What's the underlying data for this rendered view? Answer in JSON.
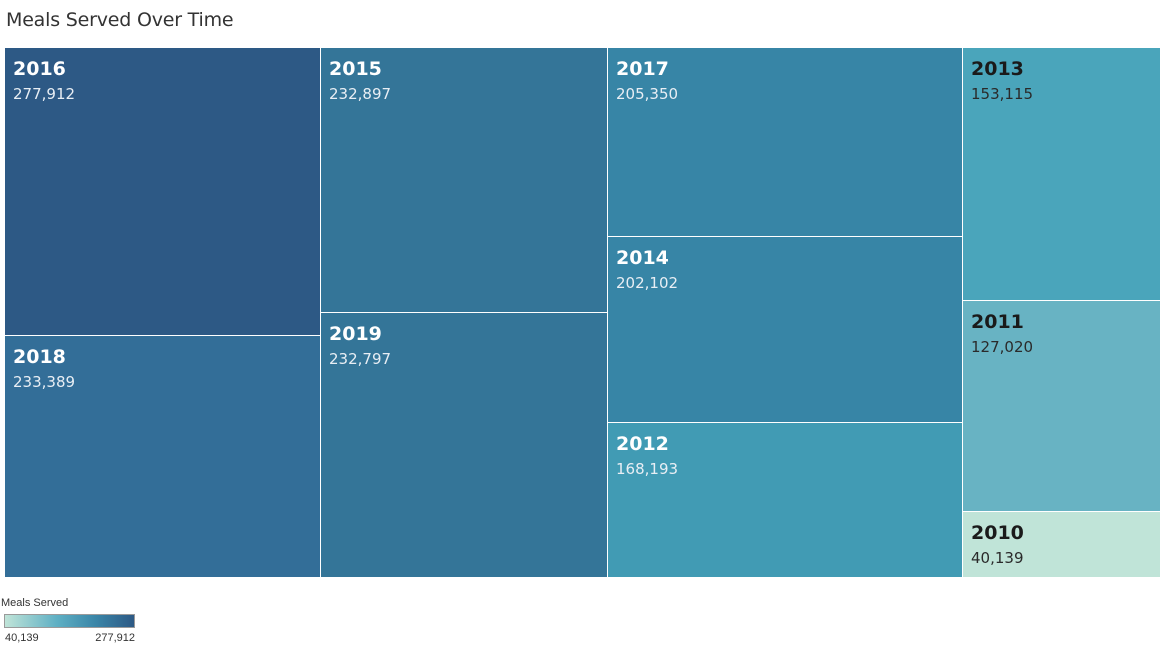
{
  "page": {
    "title": "Meals Served Over Time"
  },
  "legend": {
    "title": "Meals Served",
    "min_label": "40,139",
    "max_label": "277,912",
    "color_low": "#c0e4d8",
    "color_high": "#2d5985"
  },
  "chart_data": {
    "type": "treemap",
    "title": "Meals Served Over Time",
    "measure": "Meals Served",
    "color_range": [
      40139,
      277912
    ],
    "items": [
      {
        "label": "2016",
        "value": 277912,
        "value_label": "277,912",
        "color": "#2d5985"
      },
      {
        "label": "2018",
        "value": 233389,
        "value_label": "233,389",
        "color": "#336e98"
      },
      {
        "label": "2015",
        "value": 232897,
        "value_label": "232,897",
        "color": "#347598"
      },
      {
        "label": "2019",
        "value": 232797,
        "value_label": "232,797",
        "color": "#347598"
      },
      {
        "label": "2017",
        "value": 205350,
        "value_label": "205,350",
        "color": "#3785a6"
      },
      {
        "label": "2014",
        "value": 202102,
        "value_label": "202,102",
        "color": "#3785a6"
      },
      {
        "label": "2012",
        "value": 168193,
        "value_label": "168,193",
        "color": "#419bb4"
      },
      {
        "label": "2013",
        "value": 153115,
        "value_label": "153,115",
        "color": "#4aa5bb"
      },
      {
        "label": "2011",
        "value": 127020,
        "value_label": "127,020",
        "color": "#68b3c3"
      },
      {
        "label": "2010",
        "value": 40139,
        "value_label": "40,139",
        "color": "#c0e4d8"
      }
    ]
  }
}
